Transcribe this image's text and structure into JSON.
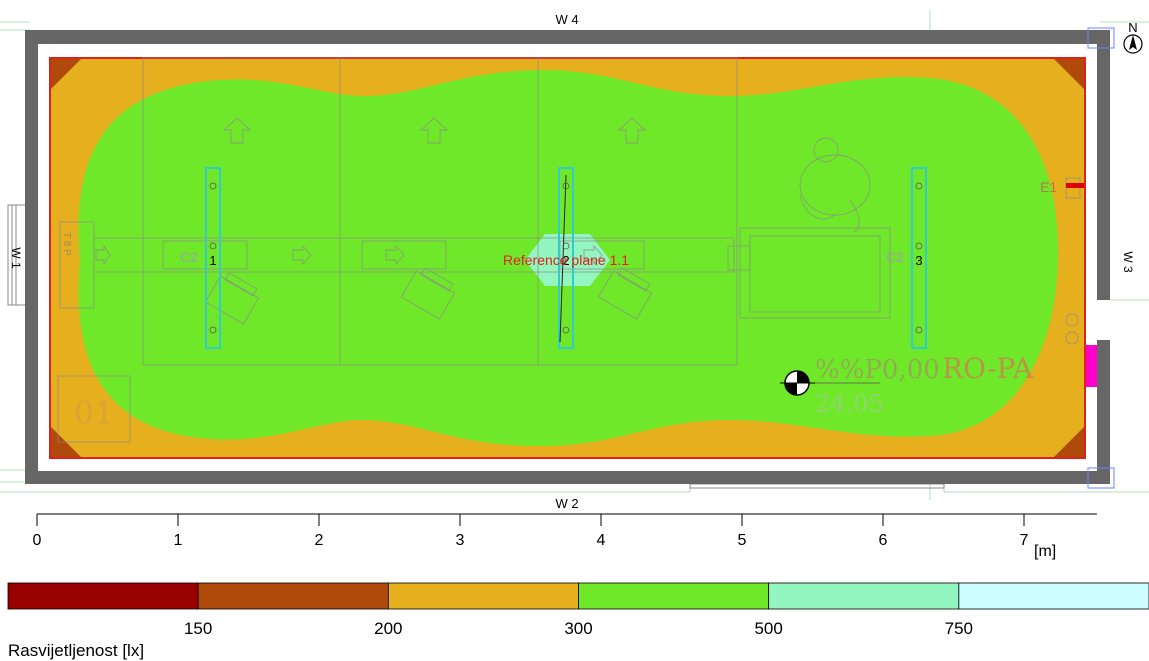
{
  "plan": {
    "walls": {
      "top": "W 4",
      "bottom": "W 2",
      "left": "W 1",
      "right": "W 3"
    },
    "north": "N",
    "reference_plane": "Reference plane 1.1",
    "luminaires": [
      {
        "number": "1",
        "group": "C2"
      },
      {
        "number": "2",
        "group": ""
      },
      {
        "number": "3",
        "group": "C2"
      }
    ],
    "emergency_label": "E1",
    "room_number": "01",
    "left_tag": "T 8 P",
    "room_code": "%%P0,00",
    "room_name": "RO-PA",
    "room_area": "24.05",
    "colors": {
      "wall": "#666666",
      "outline_red": "#e0201a",
      "luminaire": "#33cccc",
      "marker_magenta": "#ff00cc"
    }
  },
  "scale": {
    "ticks": [
      "0",
      "1",
      "2",
      "3",
      "4",
      "5",
      "6",
      "7"
    ],
    "unit": "[m]"
  },
  "legend": {
    "title": "Rasvijetljenost [lx]",
    "thresholds": [
      "150",
      "200",
      "300",
      "500",
      "750"
    ],
    "colors": [
      "#990000",
      "#b04a0a",
      "#e5af1d",
      "#70e82a",
      "#93f5bf",
      "#ccfdff"
    ]
  }
}
